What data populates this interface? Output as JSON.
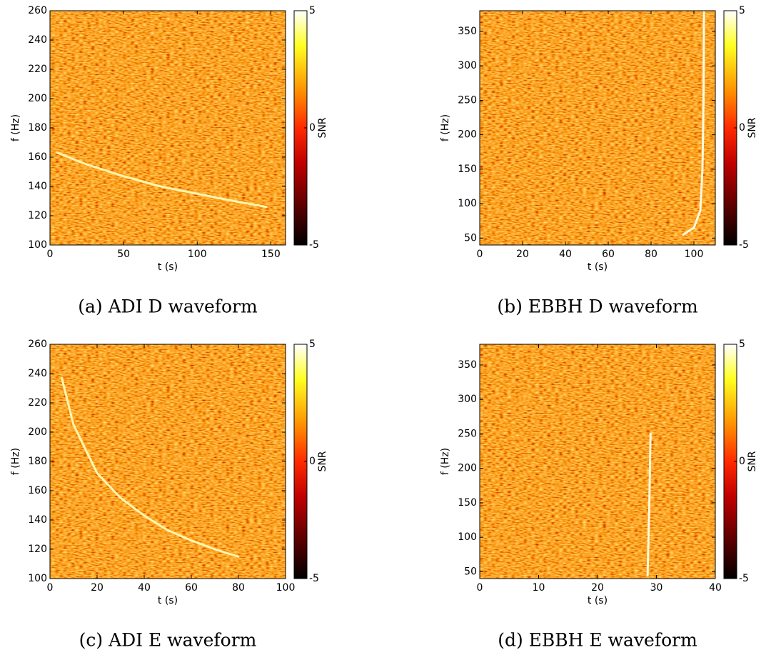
{
  "chart_data": [
    {
      "type": "spectrogram",
      "title": "(a) ADI D waveform",
      "x_label": "t (s)",
      "y_label": "f (Hz)",
      "xlim": [
        0,
        160
      ],
      "xticks": [
        0,
        50,
        100,
        150
      ],
      "ylim": [
        100,
        260
      ],
      "yticks": [
        100,
        120,
        140,
        160,
        180,
        200,
        220,
        240,
        260
      ],
      "colorbar": {
        "label": "SNR",
        "lim": [
          -5,
          5
        ],
        "ticks": [
          -5,
          0,
          5
        ]
      },
      "series": [
        {
          "color": "#fff6b0",
          "x": [
            5,
            25,
            50,
            75,
            100,
            125,
            147
          ],
          "values": [
            163,
            155,
            147,
            140,
            135,
            130,
            126
          ]
        }
      ]
    },
    {
      "type": "spectrogram",
      "title": "(b) EBBH D waveform",
      "x_label": "t (s)",
      "y_label": "f (Hz)",
      "xlim": [
        0,
        110
      ],
      "xticks": [
        0,
        20,
        40,
        60,
        80,
        100
      ],
      "ylim": [
        40,
        380
      ],
      "yticks": [
        50,
        100,
        150,
        200,
        250,
        300,
        350
      ],
      "colorbar": {
        "label": "SNR",
        "lim": [
          -5,
          5
        ],
        "ticks": [
          -5,
          0,
          5
        ]
      },
      "series": [
        {
          "color": "#fffbe0",
          "x": [
            95,
            100,
            103,
            104,
            104.5,
            104.7
          ],
          "values": [
            55,
            65,
            90,
            150,
            250,
            380
          ]
        }
      ]
    },
    {
      "type": "spectrogram",
      "title": "(c) ADI E waveform",
      "x_label": "t (s)",
      "y_label": "f (Hz)",
      "xlim": [
        0,
        100
      ],
      "xticks": [
        0,
        20,
        40,
        60,
        80,
        100
      ],
      "ylim": [
        100,
        260
      ],
      "yticks": [
        100,
        120,
        140,
        160,
        180,
        200,
        220,
        240,
        260
      ],
      "colorbar": {
        "label": "SNR",
        "lim": [
          -5,
          5
        ],
        "ticks": [
          -5,
          0,
          5
        ]
      },
      "series": [
        {
          "color": "#fff6b0",
          "x": [
            5,
            10,
            20,
            30,
            40,
            50,
            60,
            70,
            80
          ],
          "values": [
            237,
            205,
            172,
            155,
            143,
            133,
            126,
            120,
            115
          ]
        }
      ]
    },
    {
      "type": "spectrogram",
      "title": "(d) EBBH E waveform",
      "x_label": "t (s)",
      "y_label": "f (Hz)",
      "xlim": [
        0,
        40
      ],
      "xticks": [
        0,
        10,
        20,
        30,
        40
      ],
      "ylim": [
        40,
        380
      ],
      "yticks": [
        50,
        100,
        150,
        200,
        250,
        300,
        350
      ],
      "colorbar": {
        "label": "SNR",
        "lim": [
          -5,
          5
        ],
        "ticks": [
          -5,
          0,
          5
        ]
      },
      "series": [
        {
          "color": "#fffbe0",
          "x": [
            28.5,
            28.8,
            29
          ],
          "values": [
            45,
            150,
            250
          ]
        }
      ]
    }
  ]
}
